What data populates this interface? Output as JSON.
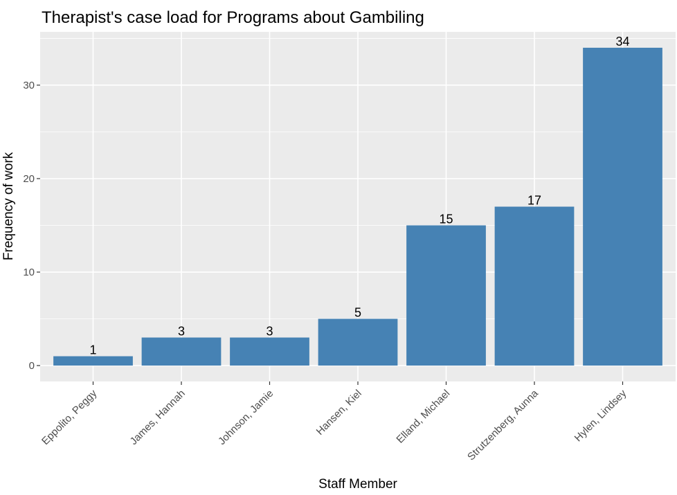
{
  "chart_data": {
    "type": "bar",
    "title": "Therapist's case load for Programs about Gambiling",
    "xlabel": "Staff Member",
    "ylabel": "Frequency of work",
    "categories": [
      "Eppolito, Peggy",
      "James, Hannah",
      "Johnson, Jamie",
      "Hansen, Kiel",
      "Elland, Michael",
      "Strutzenberg, Aunna",
      "Hylen, Lindsey"
    ],
    "values": [
      1,
      3,
      3,
      5,
      15,
      17,
      34
    ],
    "data_labels": [
      "1",
      "3",
      "3",
      "5",
      "15",
      "17",
      "34"
    ],
    "ylim": [
      -1.7,
      35.7
    ],
    "yticks": [
      0,
      10,
      20,
      30
    ],
    "ytick_labels": [
      "0",
      "10",
      "20",
      "30"
    ],
    "grid": true,
    "legend": "none",
    "colors": {
      "bar": "#4682b4",
      "panel": "#ebebeb",
      "grid": "#ffffff",
      "tick_text": "#4d4d4d",
      "tick_mark": "#333333"
    }
  }
}
